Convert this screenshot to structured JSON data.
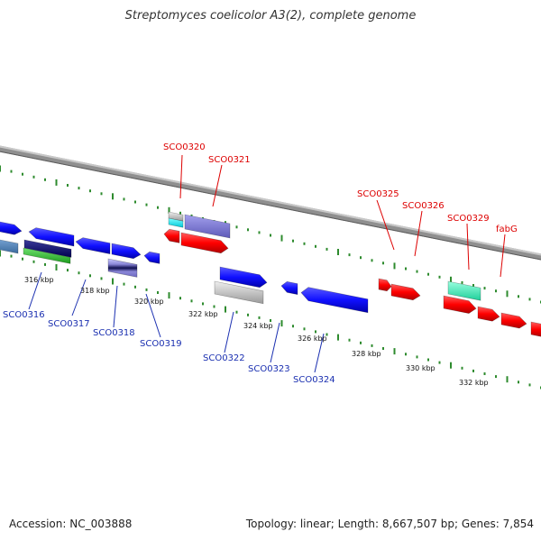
{
  "title": "Streptomyces coelicolor A3(2), complete genome",
  "footer": {
    "accession": "Accession: NC_003888",
    "stats": "Topology: linear; Length: 8,667,507 bp; Genes: 7,854"
  },
  "colors": {
    "backbone": "#8c8c8c",
    "tick_green": "#2e8b2e",
    "label_red": "#dd0000",
    "label_blue": "#1a2fb0",
    "arrow_red": "#ff0000",
    "arrow_blue": "#1010ff"
  },
  "scale_labels": [
    "316 kbp",
    "318 kbp",
    "320 kbp",
    "322 kbp",
    "324 kbp",
    "326 kbp",
    "328 kbp",
    "330 kbp",
    "332 kbp"
  ],
  "top_gene_labels": [
    "SCO0320",
    "SCO0321",
    "SCO0325",
    "SCO0326",
    "SCO0329",
    "fabG"
  ],
  "bottom_gene_labels": [
    "SCO0316",
    "SCO0317",
    "SCO0318",
    "SCO0319",
    "SCO0322",
    "SCO0323",
    "SCO0324"
  ]
}
